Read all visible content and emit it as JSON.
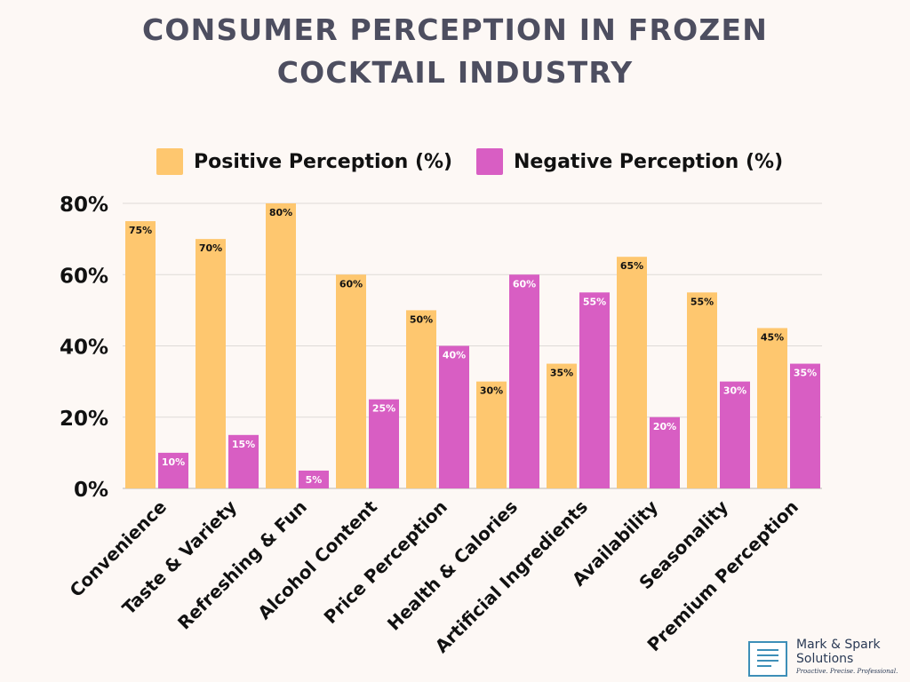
{
  "title_lines": [
    "CONSUMER PERCEPTION IN FROZEN",
    "COCKTAIL INDUSTRY"
  ],
  "chart_data": {
    "type": "bar",
    "categories": [
      "Convenience",
      "Taste & Variety",
      "Refreshing & Fun",
      "Alcohol Content",
      "Price Perception",
      "Health & Calories",
      "Artificial Ingredients",
      "Availability",
      "Seasonality",
      "Premium Perception"
    ],
    "series": [
      {
        "name": "Positive Perception (%)",
        "color": "#fec76f",
        "values": [
          75,
          70,
          80,
          60,
          50,
          30,
          35,
          65,
          55,
          45
        ]
      },
      {
        "name": "Negative Perception (%)",
        "color": "#d85ec3",
        "values": [
          10,
          15,
          5,
          25,
          40,
          60,
          55,
          20,
          30,
          35
        ]
      }
    ],
    "yticks": [
      0,
      20,
      40,
      60,
      80
    ],
    "ylim": [
      0,
      80
    ],
    "value_suffix": "%",
    "grid": true,
    "legend_position": "top"
  },
  "logo": {
    "name_line1": "Mark & Spark",
    "name_line2": "Solutions",
    "tagline": "Proactive. Precise. Professional."
  }
}
